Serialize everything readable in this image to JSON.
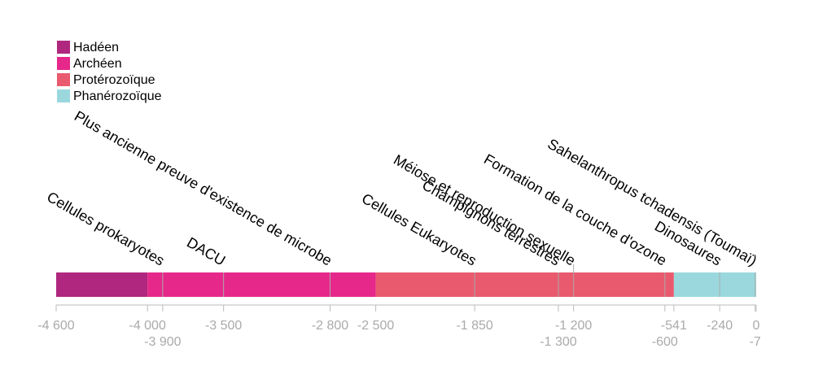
{
  "chart_data": {
    "type": "timeline",
    "eras": [
      {
        "name": "Hadéen",
        "start": -4600,
        "end": -4000,
        "color": "#b0277f"
      },
      {
        "name": "Archéen",
        "start": -4000,
        "end": -2500,
        "color": "#e6288a"
      },
      {
        "name": "Protérozoïque",
        "start": -2500,
        "end": -541,
        "color": "#e95a6e"
      },
      {
        "name": "Phanérozoïque",
        "start": -541,
        "end": 0,
        "color": "#9ad8dd"
      }
    ],
    "events": [
      {
        "label": "Cellules prokaryotes",
        "year": -3900
      },
      {
        "label": "DACU",
        "year": -3500
      },
      {
        "label": "Plus ancienne preuve d'existence de microbe",
        "year": -2800
      },
      {
        "label": "Cellules Eukaryotes",
        "year": -1850
      },
      {
        "label": "Champignons terrestres",
        "year": -1300
      },
      {
        "label": "Méiose et reproduction sexuelle",
        "year": -1200
      },
      {
        "label": "Formation de la couche d'ozone",
        "year": -600
      },
      {
        "label": "Dinosaures",
        "year": -240
      },
      {
        "label": "Sahelanthropus tchadensis (Toumaï)",
        "year": -7
      }
    ],
    "xlim": [
      -4600,
      0
    ],
    "xticks": [
      {
        "value": -4600,
        "label": "-4 600"
      },
      {
        "value": -4000,
        "label": "-4 000"
      },
      {
        "value": -3900,
        "label": "-3 900"
      },
      {
        "value": -3500,
        "label": "-3 500"
      },
      {
        "value": -2800,
        "label": "-2 800"
      },
      {
        "value": -2500,
        "label": "-2 500"
      },
      {
        "value": -1850,
        "label": "-1 850"
      },
      {
        "value": -1300,
        "label": "-1 300"
      },
      {
        "value": -1200,
        "label": "-1 200"
      },
      -600,
      -541,
      -240,
      -7,
      0
    ]
  }
}
